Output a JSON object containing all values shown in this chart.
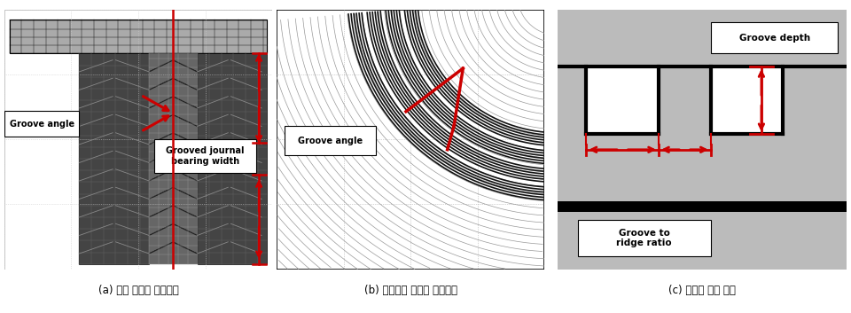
{
  "fig_width": 9.6,
  "fig_height": 3.53,
  "bg_color": "#ffffff",
  "caption_a": "(a) 저널 베어링 설계변수",
  "caption_b": "(b) 스러스트 베어링 설계변수",
  "caption_c": "(c) 그루브 설계 변수",
  "label_groove_angle_a": "Groove angle",
  "label_groove_journal": "Grooved journal\nbearing width",
  "label_groove_angle_b": "Groove angle",
  "label_groove_depth": "Groove depth",
  "label_groove_ridge": "Groove to\nridge ratio",
  "red_color": "#cc0000"
}
